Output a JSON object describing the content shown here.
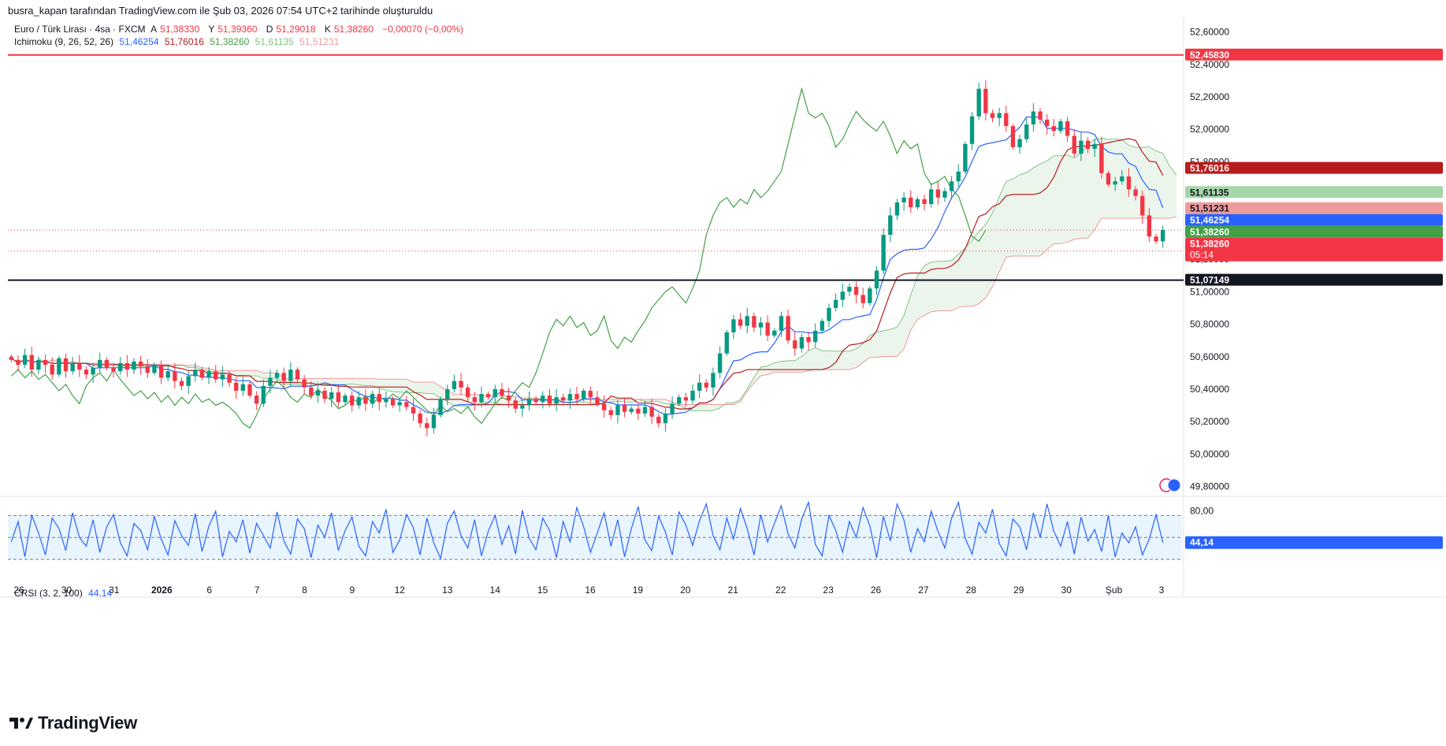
{
  "header": {
    "publisher_line": "busra_kapan tarafından TradingView.com ile Şub 03, 2026 07:54 UTC+2 tarihinde oluşturuldu"
  },
  "legend": {
    "symbol": "Euro / Türk Lirası · 4sa · FXCM",
    "open_label": "A",
    "open": "51,38330",
    "high_label": "Y",
    "high": "51,39360",
    "low_label": "D",
    "low": "51,29018",
    "close_label": "K",
    "close": "51,38260",
    "change": "−0,00070 (−0,00%)",
    "ichimoku_label": "Ichimoku (9, 26, 52, 26)",
    "ichimoku_values": [
      "51,46254",
      "51,76016",
      "51,38260",
      "51,61135",
      "51,51231"
    ],
    "crsi_label": "CRSI (3, 2, 100)",
    "crsi_value": "44,14"
  },
  "colors": {
    "up": "#089981",
    "down": "#f23645",
    "tenkan": "#2962ff",
    "kijun": "#b71c1c",
    "chikou": "#43a047",
    "span_a": "#81c784",
    "span_b": "#ef9a9a",
    "cloud_up": "rgba(67,160,71,0.10)",
    "cloud_down": "rgba(242,54,69,0.10)",
    "crsi_line": "#2962ff",
    "crsi_band": "rgba(33,150,243,0.10)"
  },
  "price_axis": {
    "ticks": [
      "52,60000",
      "52,40000",
      "52,20000",
      "52,00000",
      "51,80000",
      "51,60000",
      "51,40000",
      "51,20000",
      "51,00000",
      "50,80000",
      "50,60000",
      "50,40000",
      "50,20000",
      "50,00000",
      "49,80000"
    ],
    "range": [
      49.74,
      52.69
    ]
  },
  "time_axis": {
    "labels": [
      "26",
      "30",
      "31",
      "2026",
      "6",
      "7",
      "8",
      "9",
      "12",
      "13",
      "14",
      "15",
      "16",
      "19",
      "20",
      "21",
      "22",
      "23",
      "26",
      "27",
      "28",
      "29",
      "30",
      "Şub",
      "3"
    ]
  },
  "crsi_axis": {
    "ticks": [
      "80,00"
    ],
    "range": [
      0,
      95
    ],
    "band": [
      25,
      75
    ]
  },
  "price_badges": [
    {
      "label": "52,45830",
      "value": 52.4583,
      "color": "#f23645",
      "text_color": "#ffffff"
    },
    {
      "label": "51,76016",
      "value": 51.76016,
      "color": "#b71c1c",
      "text_color": "#ffffff"
    },
    {
      "label": "51,61135",
      "value": 51.61135,
      "color": "#a5d6a7",
      "text_color": "#131722"
    },
    {
      "label": "51,51231",
      "value": 51.51231,
      "color": "#ef9a9a",
      "text_color": "#131722"
    },
    {
      "label": "51,46254",
      "value": 51.46254,
      "color": "#2962ff",
      "text_color": "#ffffff"
    },
    {
      "label": "51,38260",
      "value": 51.3826,
      "color": "#43a047",
      "text_color": "#ffffff"
    },
    {
      "label": "51,38260",
      "sub": "05:14",
      "value": 51.3826,
      "color": "#f23645",
      "text_color": "#ffffff"
    },
    {
      "label": "51,07149",
      "value": 51.07149,
      "color": "#131722",
      "text_color": "#ffffff"
    }
  ],
  "horizontal_lines": [
    {
      "value": 52.4583,
      "color": "#f23645",
      "style": "solid"
    },
    {
      "value": 51.07149,
      "color": "#131722",
      "style": "solid"
    },
    {
      "value": 51.38,
      "color": "#f23645",
      "style": "dotted"
    },
    {
      "value": 51.25,
      "color": "#f23645",
      "style": "dotted"
    }
  ],
  "crsi_badge": {
    "label": "44,14",
    "value": 44.14
  },
  "brand": {
    "name": "TradingView"
  },
  "chart_data": {
    "type": "candlestick",
    "title": "Euro / Türk Lirası · 4sa · FXCM",
    "close_series": [
      50.58,
      50.55,
      50.61,
      50.52,
      50.58,
      50.55,
      50.49,
      50.59,
      50.51,
      50.56,
      50.52,
      50.49,
      50.53,
      50.58,
      50.53,
      50.51,
      50.56,
      50.52,
      50.57,
      50.54,
      50.5,
      50.55,
      50.47,
      50.51,
      50.45,
      50.42,
      50.48,
      50.52,
      50.47,
      50.51,
      50.46,
      50.49,
      50.44,
      50.39,
      50.43,
      50.36,
      50.31,
      50.42,
      50.47,
      50.5,
      50.45,
      50.52,
      50.46,
      50.41,
      50.36,
      50.39,
      50.34,
      50.38,
      50.32,
      50.36,
      50.3,
      50.35,
      50.31,
      50.37,
      50.32,
      50.34,
      50.3,
      50.32,
      50.29,
      50.25,
      50.19,
      50.16,
      50.24,
      50.34,
      50.4,
      50.45,
      50.41,
      50.35,
      50.32,
      50.37,
      50.35,
      50.4,
      50.36,
      50.33,
      50.28,
      50.3,
      50.34,
      50.32,
      50.36,
      50.31,
      50.35,
      50.33,
      50.37,
      50.34,
      50.39,
      50.35,
      50.31,
      50.27,
      50.24,
      50.3,
      50.26,
      50.28,
      50.25,
      50.29,
      50.23,
      50.19,
      50.25,
      50.31,
      50.35,
      50.33,
      50.39,
      50.44,
      50.41,
      50.5,
      50.62,
      50.75,
      50.83,
      50.79,
      50.85,
      50.78,
      50.81,
      50.73,
      50.76,
      50.85,
      50.7,
      50.65,
      50.72,
      50.69,
      50.76,
      50.82,
      50.9,
      50.95,
      51.0,
      51.03,
      50.98,
      50.93,
      51.02,
      51.13,
      51.35,
      51.47,
      51.55,
      51.58,
      51.52,
      51.57,
      51.54,
      51.63,
      51.58,
      51.62,
      51.68,
      51.74,
      51.91,
      52.08,
      52.25,
      52.1,
      52.07,
      52.1,
      52.02,
      51.89,
      51.94,
      52.03,
      52.11,
      52.06,
      52.02,
      51.99,
      52.05,
      51.96,
      51.85,
      51.93,
      51.88,
      51.91,
      51.73,
      51.66,
      51.68,
      51.71,
      51.63,
      51.59,
      51.47,
      51.34,
      51.31,
      51.38
    ],
    "ichimoku": {
      "params": [
        9,
        26,
        52,
        26
      ],
      "tenkan": 51.46254,
      "kijun": 51.76016,
      "chikou": 51.3826,
      "span_a": 51.61135,
      "span_b": 51.51231
    },
    "crsi": {
      "params": [
        3,
        2,
        100
      ],
      "last": 44.14,
      "values": [
        45,
        68,
        28,
        75,
        55,
        30,
        72,
        60,
        35,
        78,
        50,
        40,
        70,
        33,
        62,
        76,
        44,
        29,
        66,
        58,
        36,
        74,
        48,
        30,
        69,
        52,
        41,
        77,
        34,
        63,
        80,
        28,
        57,
        45,
        70,
        32,
        66,
        52,
        38,
        79,
        46,
        31,
        71,
        60,
        27,
        64,
        50,
        78,
        35,
        58,
        73,
        40,
        29,
        68,
        55,
        82,
        33,
        47,
        76,
        61,
        30,
        72,
        44,
        26,
        66,
        80,
        52,
        38,
        70,
        29,
        57,
        75,
        42,
        63,
        31,
        81,
        49,
        36,
        72,
        58,
        27,
        68,
        45,
        84,
        62,
        33,
        55,
        78,
        40,
        70,
        28,
        60,
        85,
        47,
        35,
        74,
        56,
        30,
        79,
        64,
        41,
        69,
        88,
        52,
        36,
        72,
        48,
        83,
        60,
        30,
        76,
        45,
        66,
        86,
        54,
        38,
        71,
        90,
        42,
        29,
        75,
        58,
        33,
        68,
        50,
        84,
        63,
        27,
        74,
        46,
        88,
        70,
        33,
        60,
        45,
        80,
        57,
        38,
        72,
        90,
        49,
        31,
        67,
        55,
        82,
        43,
        29,
        71,
        62,
        36,
        78,
        50,
        88,
        57,
        40,
        68,
        31,
        73,
        46,
        59,
        34,
        75,
        28,
        55,
        44,
        62,
        30,
        48,
        76,
        44
      ]
    }
  }
}
